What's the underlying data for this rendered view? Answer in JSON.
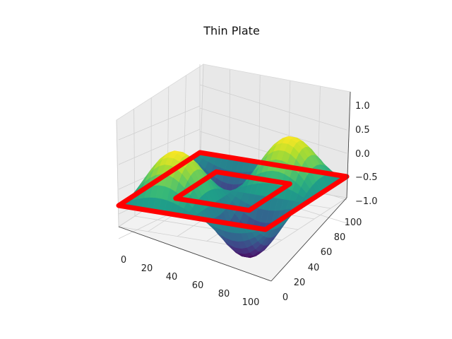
{
  "chart_data": {
    "type": "surface",
    "title": "Thin Plate",
    "colormap": "viridis",
    "x_axis": {
      "ticks": [
        0,
        20,
        40,
        60,
        80,
        100
      ],
      "range": [
        0,
        100
      ],
      "label": ""
    },
    "y_axis": {
      "ticks": [
        0,
        20,
        40,
        60,
        80,
        100
      ],
      "range": [
        0,
        100
      ],
      "label": ""
    },
    "z_axis": {
      "ticks": [
        1.0,
        0.5,
        0.0,
        -0.5,
        -1.0
      ],
      "tick_labels": [
        "1.0",
        "0.5",
        "0.0",
        "−0.5",
        "−1.0"
      ],
      "range": [
        -1.0,
        1.0
      ],
      "label": ""
    },
    "grid": true,
    "surface": {
      "description_function": "sin(2*pi*x/100)*sin(2*pi*y/100)",
      "resolution": 100
    },
    "boundaries": [
      {
        "name": "outer",
        "color": "#ff0000",
        "square": [
          0,
          100
        ]
      },
      {
        "name": "inner",
        "color": "#ff0000",
        "square": [
          25,
          75
        ]
      }
    ]
  }
}
